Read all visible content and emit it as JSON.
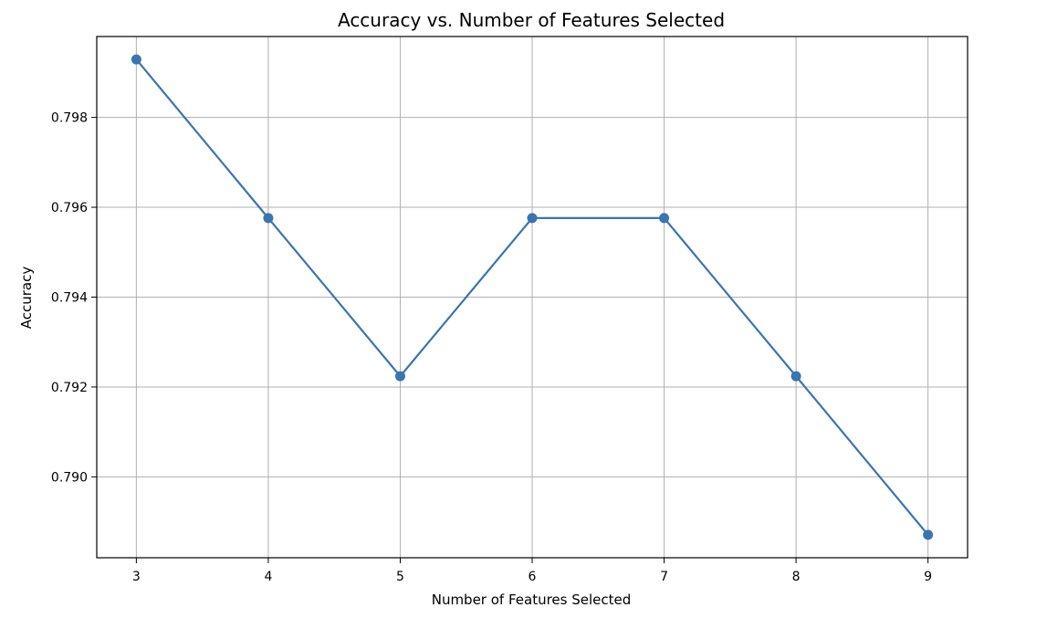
{
  "chart_data": {
    "type": "line",
    "title": "Accuracy vs. Number of Features Selected",
    "xlabel": "Number of Features Selected",
    "ylabel": "Accuracy",
    "x": [
      3,
      4,
      5,
      6,
      7,
      8,
      9
    ],
    "series": [
      {
        "values": [
          0.79929,
          0.79576,
          0.79224,
          0.79576,
          0.79576,
          0.79224,
          0.78871
        ]
      }
    ],
    "xlim": [
      2.7,
      9.3
    ],
    "ylim": [
      0.7882,
      0.7998
    ],
    "xticks": [
      3,
      4,
      5,
      6,
      7,
      8,
      9
    ],
    "xtick_labels": [
      "3",
      "4",
      "5",
      "6",
      "7",
      "8",
      "9"
    ],
    "yticks": [
      0.79,
      0.792,
      0.794,
      0.796,
      0.798
    ],
    "ytick_labels": [
      "0.790",
      "0.792",
      "0.794",
      "0.796",
      "0.798"
    ],
    "grid": true,
    "marker": "circle",
    "color": "#3a75af"
  }
}
